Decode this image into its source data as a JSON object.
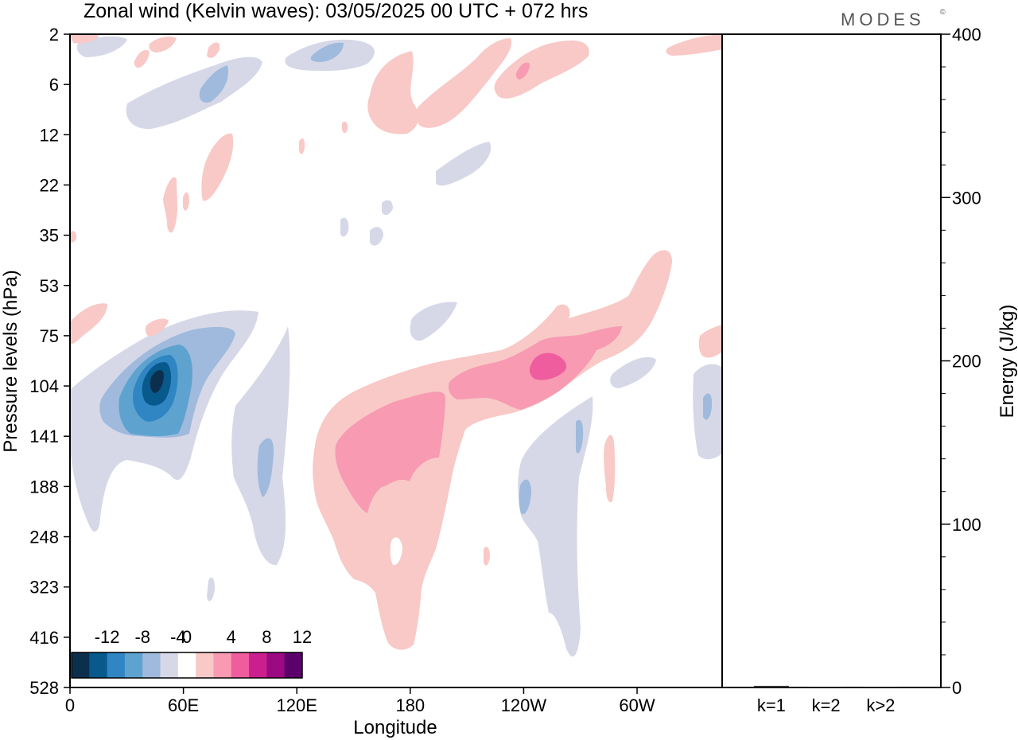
{
  "title": "Zonal wind (Kelvin waves):  03/05/2025  00 UTC  + 072 hrs",
  "logo": "MODES",
  "logo_mark": "©",
  "chart_data": [
    {
      "type": "heatmap",
      "name": "zonal-wind-section",
      "xlabel": "Longitude",
      "ylabel": "Pressure levels (hPa)",
      "x_ticks": [
        "0",
        "60E",
        "120E",
        "180",
        "120W",
        "60W"
      ],
      "x_tick_degrees": [
        0,
        60,
        120,
        180,
        240,
        300
      ],
      "xlim": [
        0,
        345
      ],
      "y_ticks": [
        "2",
        "6",
        "12",
        "22",
        "35",
        "53",
        "75",
        "104",
        "141",
        "188",
        "248",
        "323",
        "416",
        "528"
      ],
      "y_scale": "level index, top to bottom",
      "colorbar": {
        "labels": [
          "-12",
          "-8",
          "-4",
          "0",
          "4",
          "8",
          "12"
        ],
        "levels": [
          -14,
          -12,
          -10,
          -8,
          -6,
          -4,
          -2,
          2,
          4,
          6,
          8,
          10,
          12,
          14
        ],
        "colors": [
          "#0c2f4d",
          "#08598c",
          "#2f86c2",
          "#5ea3cf",
          "#9fbadc",
          "#d6d8e8",
          "#ffffff",
          "#f8c9c6",
          "#f79ab2",
          "#ef5d9e",
          "#cc1f8e",
          "#9b0a80",
          "#5c006c"
        ]
      },
      "features": [
        {
          "label": "negative anomaly core",
          "value": -10,
          "lon": 50,
          "level_index": 7.3
        },
        {
          "label": "negative anomaly upper",
          "value": -6,
          "lon": 75,
          "level_index": 1.0
        },
        {
          "label": "positive anomaly main",
          "value": 6,
          "lon": 195,
          "level_index": 8.7
        },
        {
          "label": "positive anomaly core",
          "value": 8,
          "lon": 265,
          "level_index": 6.8
        },
        {
          "label": "negative anomaly east",
          "value": -6,
          "lon": 270,
          "level_index": 9.9
        }
      ]
    },
    {
      "type": "bar",
      "name": "kelvin-energy",
      "categories": [
        "k=1",
        "k=2",
        "k>2"
      ],
      "values": [
        1,
        0.5,
        0.5
      ],
      "ylabel": "Energy (J/kg)",
      "ylim": [
        0,
        400
      ],
      "y_ticks": [
        0,
        100,
        200,
        300,
        400
      ]
    }
  ]
}
